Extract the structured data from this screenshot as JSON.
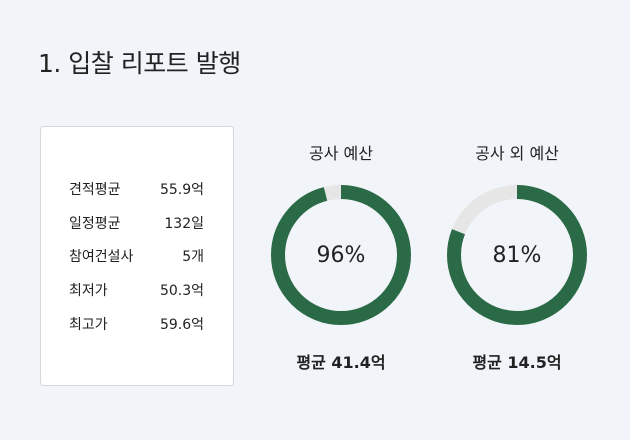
{
  "title": "1. 입찰 리포트 발행",
  "stats": [
    {
      "label": "견적평균",
      "value": "55.9억"
    },
    {
      "label": "일정평균",
      "value": "132일"
    },
    {
      "label": "참여건설사",
      "value": "5개"
    },
    {
      "label": "최저가",
      "value": "50.3억"
    },
    {
      "label": "최고가",
      "value": "59.6억"
    }
  ],
  "gauges": [
    {
      "title": "공사 예산",
      "percent": 96,
      "percent_label": "96%",
      "average": "평균 41.4억"
    },
    {
      "title": "공사 외 예산",
      "percent": 81,
      "percent_label": "81%",
      "average": "평균 14.5억"
    }
  ],
  "colors": {
    "background": "#f1f4f9",
    "gauge_fill": "#2b6a46",
    "gauge_track": "#e6e6e6"
  }
}
